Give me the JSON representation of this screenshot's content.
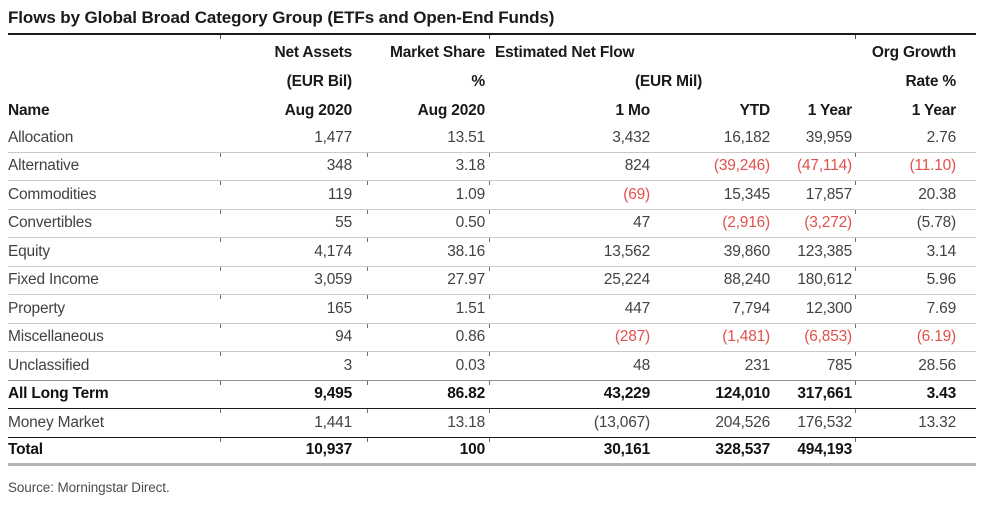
{
  "title": "Flows by Global Broad Category Group (ETFs and Open-End Funds)",
  "source": "Source: Morningstar Direct.",
  "colors": {
    "negative_red": "#e2514c",
    "text_gray": "#424242",
    "text_black": "#1a1a1a",
    "rule_light": "#c9c9c9",
    "rule_dark": "#1a1a1a"
  },
  "header": {
    "name": "Name",
    "net_assets": {
      "line1": "Net Assets",
      "line2": "(EUR Bil)",
      "line3": "Aug 2020"
    },
    "market_share": {
      "line1": "Market Share",
      "line2": "%",
      "line3": "Aug 2020"
    },
    "est_net_flow": {
      "line1": "Estimated Net Flow",
      "line2": "(EUR Mil)",
      "sub": [
        "1 Mo",
        "YTD",
        "1 Year"
      ]
    },
    "org_growth": {
      "line1": "Org Growth",
      "line2": "Rate %",
      "line3": "1 Year"
    }
  },
  "rows": [
    {
      "name": "Allocation",
      "values": [
        "1,477",
        "13.51",
        "3,432",
        "16,182",
        "39,959",
        "2.76"
      ],
      "red": [],
      "bold": false,
      "divider": "light"
    },
    {
      "name": "Alternative",
      "values": [
        "348",
        "3.18",
        "824",
        "(39,246)",
        "(47,114)",
        "(11.10)"
      ],
      "red": [
        3,
        4,
        5
      ],
      "bold": false,
      "divider": "light"
    },
    {
      "name": "Commodities",
      "values": [
        "119",
        "1.09",
        "(69)",
        "15,345",
        "17,857",
        "20.38"
      ],
      "red": [
        2
      ],
      "bold": false,
      "divider": "light"
    },
    {
      "name": "Convertibles",
      "values": [
        "55",
        "0.50",
        "47",
        "(2,916)",
        "(3,272)",
        "(5.78)"
      ],
      "red": [
        3,
        4
      ],
      "bold": false,
      "divider": "light"
    },
    {
      "name": "Equity",
      "values": [
        "4,174",
        "38.16",
        "13,562",
        "39,860",
        "123,385",
        "3.14"
      ],
      "red": [],
      "bold": false,
      "divider": "light"
    },
    {
      "name": "Fixed Income",
      "values": [
        "3,059",
        "27.97",
        "25,224",
        "88,240",
        "180,612",
        "5.96"
      ],
      "red": [],
      "bold": false,
      "divider": "light"
    },
    {
      "name": "Property",
      "values": [
        "165",
        "1.51",
        "447",
        "7,794",
        "12,300",
        "7.69"
      ],
      "red": [],
      "bold": false,
      "divider": "light"
    },
    {
      "name": "Miscellaneous",
      "values": [
        "94",
        "0.86",
        "(287)",
        "(1,481)",
        "(6,853)",
        "(6.19)"
      ],
      "red": [
        2,
        3,
        4,
        5
      ],
      "bold": false,
      "divider": "light"
    },
    {
      "name": "Unclassified",
      "values": [
        "3",
        "0.03",
        "48",
        "231",
        "785",
        "28.56"
      ],
      "red": [],
      "bold": false,
      "divider": "mid"
    },
    {
      "name": "All Long Term",
      "values": [
        "9,495",
        "86.82",
        "43,229",
        "124,010",
        "317,661",
        "3.43"
      ],
      "red": [],
      "bold": true,
      "divider": "dark"
    },
    {
      "name": "Money Market",
      "values": [
        "1,441",
        "13.18",
        "(13,067)",
        "204,526",
        "176,532",
        "13.32"
      ],
      "red": [],
      "bold": false,
      "divider": "dark"
    },
    {
      "name": "Total",
      "values": [
        "10,937",
        "100",
        "30,161",
        "328,537",
        "494,193",
        ""
      ],
      "red": [],
      "bold": true,
      "divider": "thick"
    }
  ]
}
